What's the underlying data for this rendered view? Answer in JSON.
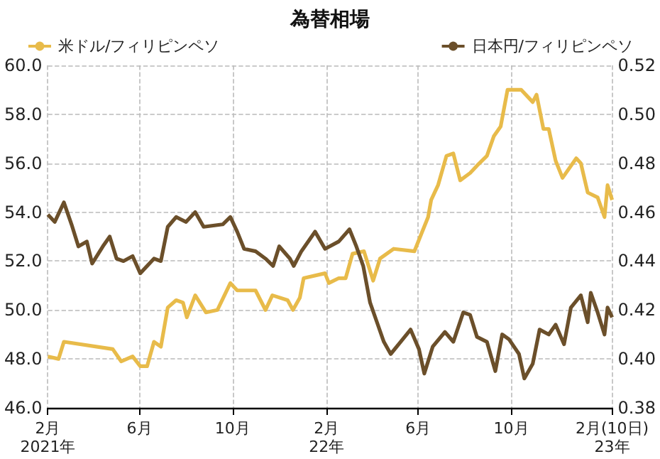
{
  "chart_data": {
    "type": "line",
    "title": "為替相場",
    "legend": "top",
    "grid": true,
    "xlim": [
      "2021-02-01",
      "2023-02-10"
    ],
    "xticks": [
      {
        "value": "2021-02-01",
        "label": "2月\n2021年"
      },
      {
        "value": "2021-06-01",
        "label": "6月"
      },
      {
        "value": "2021-10-01",
        "label": "10月"
      },
      {
        "value": "2022-02-01",
        "label": "2月\n22年"
      },
      {
        "value": "2022-06-01",
        "label": "6月"
      },
      {
        "value": "2022-10-01",
        "label": "10月"
      },
      {
        "value": "2023-02-10",
        "label": "2月(10日)\n23年"
      }
    ],
    "ylim": [
      46,
      60
    ],
    "yticks": [
      {
        "value": 46,
        "label": "46.0"
      },
      {
        "value": 48,
        "label": "48.0"
      },
      {
        "value": 50,
        "label": "50.0"
      },
      {
        "value": 52,
        "label": "52.0"
      },
      {
        "value": 54,
        "label": "54.0"
      },
      {
        "value": 56,
        "label": "56.0"
      },
      {
        "value": 58,
        "label": "58.0"
      },
      {
        "value": 60,
        "label": "60.0"
      }
    ],
    "y2lim": [
      0.38,
      0.52
    ],
    "y2ticks": [
      {
        "value": 0.38,
        "label": "0.38"
      },
      {
        "value": 0.4,
        "label": "0.40"
      },
      {
        "value": 0.42,
        "label": "0.42"
      },
      {
        "value": 0.44,
        "label": "0.44"
      },
      {
        "value": 0.46,
        "label": "0.46"
      },
      {
        "value": 0.48,
        "label": "0.48"
      },
      {
        "value": 0.5,
        "label": "0.50"
      },
      {
        "value": 0.52,
        "label": "0.52"
      }
    ],
    "series": [
      {
        "name": "米ドル/フィリピンペソ",
        "color": "#e8bb4a",
        "x": [
          "2021-02-01",
          "2021-02-15",
          "2021-02-22",
          "2021-04-27",
          "2021-05-08",
          "2021-05-23",
          "2021-06-02",
          "2021-06-11",
          "2021-06-20",
          "2021-06-29",
          "2021-07-08",
          "2021-07-19",
          "2021-07-28",
          "2021-08-02",
          "2021-08-13",
          "2021-08-27",
          "2021-09-11",
          "2021-09-28",
          "2021-10-07",
          "2021-10-31",
          "2021-11-13",
          "2021-11-22",
          "2021-12-12",
          "2021-12-19",
          "2021-12-28",
          "2022-01-02",
          "2022-01-30",
          "2022-02-04",
          "2022-02-17",
          "2022-02-26",
          "2022-03-07",
          "2022-03-22",
          "2022-04-03",
          "2022-04-12",
          "2022-04-30",
          "2022-05-27",
          "2022-06-05",
          "2022-06-14",
          "2022-06-18",
          "2022-06-27",
          "2022-07-08",
          "2022-07-17",
          "2022-07-26",
          "2022-08-08",
          "2022-08-17",
          "2022-08-30",
          "2022-09-08",
          "2022-09-17",
          "2022-09-26",
          "2022-10-14",
          "2022-10-29",
          "2022-11-03",
          "2022-11-12",
          "2022-11-19",
          "2022-11-28",
          "2022-12-07",
          "2022-12-25",
          "2022-12-31",
          "2023-01-09",
          "2023-01-22",
          "2023-01-31",
          "2023-02-04",
          "2023-02-10"
        ],
        "values": [
          48.1,
          48.0,
          48.7,
          48.4,
          47.9,
          48.1,
          47.7,
          47.7,
          48.7,
          48.5,
          50.1,
          50.4,
          50.3,
          49.7,
          50.6,
          49.9,
          50.0,
          51.1,
          50.8,
          50.8,
          50.0,
          50.6,
          50.4,
          50.0,
          50.5,
          51.3,
          51.5,
          51.1,
          51.3,
          51.3,
          52.3,
          52.4,
          51.2,
          52.1,
          52.5,
          52.4,
          53.1,
          53.8,
          54.5,
          55.1,
          56.3,
          56.4,
          55.3,
          55.6,
          55.9,
          56.3,
          57.1,
          57.5,
          59.0,
          59.0,
          58.5,
          58.8,
          57.4,
          57.4,
          56.1,
          55.4,
          56.2,
          56.0,
          54.8,
          54.6,
          53.8,
          55.1,
          54.5
        ]
      },
      {
        "name": "日本円/フィリピンペソ",
        "color": "#6b4f2a",
        "axis": "y2",
        "x": [
          "2021-02-01",
          "2021-02-10",
          "2021-02-22",
          "2021-03-04",
          "2021-03-13",
          "2021-03-24",
          "2021-03-31",
          "2021-04-14",
          "2021-04-23",
          "2021-05-02",
          "2021-05-11",
          "2021-05-23",
          "2021-06-02",
          "2021-06-20",
          "2021-06-29",
          "2021-07-08",
          "2021-07-19",
          "2021-08-01",
          "2021-08-13",
          "2021-08-24",
          "2021-09-18",
          "2021-09-28",
          "2021-10-07",
          "2021-10-16",
          "2021-10-31",
          "2021-11-13",
          "2021-11-23",
          "2021-12-01",
          "2021-12-15",
          "2021-12-20",
          "2021-12-30",
          "2022-01-17",
          "2022-01-30",
          "2022-02-17",
          "2022-03-03",
          "2022-03-12",
          "2022-03-21",
          "2022-03-30",
          "2022-04-08",
          "2022-04-17",
          "2022-04-26",
          "2022-05-09",
          "2022-05-22",
          "2022-06-02",
          "2022-06-09",
          "2022-06-20",
          "2022-07-06",
          "2022-07-17",
          "2022-07-30",
          "2022-08-08",
          "2022-08-17",
          "2022-08-30",
          "2022-09-10",
          "2022-09-19",
          "2022-09-28",
          "2022-10-11",
          "2022-10-18",
          "2022-10-29",
          "2022-11-07",
          "2022-11-19",
          "2022-11-28",
          "2022-12-09",
          "2022-12-18",
          "2022-12-31",
          "2023-01-09",
          "2023-01-13",
          "2023-01-22",
          "2023-01-31",
          "2023-02-04",
          "2023-02-10"
        ],
        "values": [
          0.459,
          0.456,
          0.464,
          0.455,
          0.446,
          0.448,
          0.439,
          0.446,
          0.45,
          0.441,
          0.44,
          0.442,
          0.435,
          0.441,
          0.44,
          0.454,
          0.458,
          0.456,
          0.46,
          0.454,
          0.455,
          0.458,
          0.452,
          0.445,
          0.444,
          0.441,
          0.438,
          0.446,
          0.441,
          0.438,
          0.444,
          0.452,
          0.445,
          0.448,
          0.453,
          0.446,
          0.438,
          0.423,
          0.415,
          0.407,
          0.402,
          0.407,
          0.412,
          0.404,
          0.394,
          0.405,
          0.411,
          0.407,
          0.419,
          0.418,
          0.409,
          0.407,
          0.395,
          0.41,
          0.408,
          0.402,
          0.392,
          0.398,
          0.412,
          0.41,
          0.414,
          0.406,
          0.421,
          0.426,
          0.415,
          0.427,
          0.419,
          0.41,
          0.421,
          0.417
        ]
      }
    ]
  }
}
